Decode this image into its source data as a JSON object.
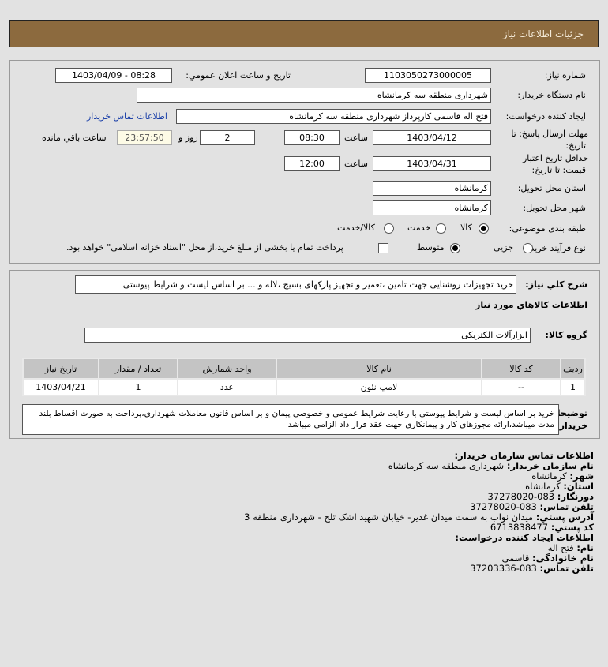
{
  "header": {
    "title": "جزئیات اطلاعات نیاز"
  },
  "form": {
    "need_number_label": "شماره نیاز:",
    "need_number": "1103050273000005",
    "announce_label": "تاریخ و ساعت اعلان عمومي:",
    "announce_value": "1403/04/09 - 08:28",
    "buyer_org_label": "نام دستگاه خریدار:",
    "buyer_org": "شهرداری منطقه سه کرمانشاه",
    "creator_label": "ایجاد کننده درخواست:",
    "creator": "فتح اله قاسمی کارپرداز شهرداری منطقه سه کرمانشاه",
    "contact_link": "اطلاعات تماس خریدار",
    "deadline_label_1": "مهلت ارسال پاسخ: تا",
    "deadline_label_2": "تاریخ:",
    "deadline_date": "1403/04/12",
    "time_label": "ساعت",
    "deadline_time": "08:30",
    "days": "2",
    "days_label": "روز و",
    "remaining": "23:57:50",
    "remaining_label": "ساعت باقي مانده",
    "validity_label_1": "حداقل تاریخ اعتبار",
    "validity_label_2": "قیمت: تا تاریخ:",
    "validity_date": "1403/04/31",
    "validity_time": "12:00",
    "province_label": "استان محل تحویل:",
    "province": "کرمانشاه",
    "city_label": "شهر محل تحویل:",
    "city": "کرمانشاه",
    "category_label": "طبقه بندی موضوعی:",
    "category_options": [
      "کالا",
      "خدمت",
      "کالا/خدمت"
    ],
    "category_selected": "کالا",
    "process_label": "نوع فرآیند خرید :",
    "process_options": [
      "جزیی",
      "متوسط"
    ],
    "process_selected": "متوسط",
    "treasury_text": "پرداخت تمام یا بخشی از مبلغ خرید،از محل \"اسناد خزانه اسلامی\" خواهد بود.",
    "treasury_checked": false
  },
  "details": {
    "summary_label": "شرح کلي نیاز:",
    "summary": "خرید تجهیزات روشنایی جهت تامین ،تعمیر و تجهیز پارکهای بسیج ،لاله و ... بر اساس لیست و شرایط پیوستی",
    "goods_heading": "اطلاعات کالاهاي مورد نیاز",
    "group_label": "گروه کالا:",
    "group": "ابزارآلات الکتریکی",
    "table": {
      "headers": [
        "ردیف",
        "کد کالا",
        "نام کالا",
        "واحد شمارش",
        "تعداد / مقدار",
        "تاریخ نیاز"
      ],
      "rows": [
        [
          "1",
          "--",
          "لامپ نئون",
          "عدد",
          "1",
          "1403/04/21"
        ]
      ]
    },
    "notes_label_1": "توضیحات",
    "notes_label_2": "خریدار:",
    "notes": "خرید بر اساس لیست و شرایط پیوستی با رعایت شرایط عمومی و خصوصی پیمان و بر اساس قانون معاملات شهرداری،پرداخت به صورت اقساط بلند مدت میباشد،ارائه مجوزهای کار و پیمانکاری جهت عقد قرار داد الزامی میباشد"
  },
  "contact": {
    "heading": "اطلاعات تماس سازمان خریدار:",
    "org_label": "نام سازمان خریدار:",
    "org": "شهرداری منطقه سه کرمانشاه",
    "city_label": "شهر:",
    "city": "کرمانشاه",
    "province_label": "استان:",
    "province": "کرمانشاه",
    "fax_label": "دورنگار:",
    "fax": "083-37278020",
    "phone_label": "تلفن تماس:",
    "phone": "083-37278020",
    "address_label": "آدرس پستي:",
    "address": "میدان نواب به سمت میدان غدیر- خیابان شهید اشک تلخ - شهرداری منطقه 3",
    "postal_label": "کد پستي:",
    "postal": "6713838477",
    "creator_heading": "اطلاعات ایجاد کننده درخواست:",
    "name_label": "نام:",
    "name": "فتح اله",
    "family_label": "نام خانوادگی:",
    "family": "قاسمی",
    "creator_phone_label": "تلفن تماس:",
    "creator_phone": "083-37203336"
  }
}
